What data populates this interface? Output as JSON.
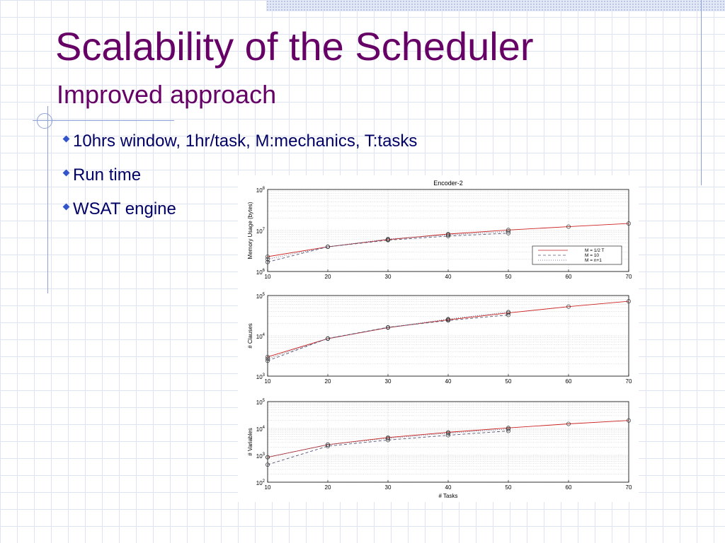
{
  "slide": {
    "title": "Scalability of the Scheduler",
    "subtitle": "Improved approach",
    "bullets": [
      {
        "text": "10hrs window, 1hr/task, M:mechanics, T:tasks"
      },
      {
        "text": "Run time"
      },
      {
        "text": "WSAT engine"
      }
    ]
  },
  "colors": {
    "title": "#660066",
    "bullet_text": "#000066",
    "bullet_marker": "#3355cc",
    "series_red": "#cc2222",
    "series_dash": "#555577"
  },
  "chart_data": [
    {
      "type": "line",
      "title": "Encoder-2",
      "xlabel": "",
      "ylabel": "Memory Usage (bytes)",
      "yscale": "log",
      "xlim": [
        10,
        70
      ],
      "ylim": [
        1000000,
        100000000
      ],
      "x_ticks": [
        10,
        20,
        30,
        40,
        50,
        60,
        70
      ],
      "y_ticks": [
        {
          "base": "10",
          "exp": "6",
          "value": 1000000
        },
        {
          "base": "10",
          "exp": "7",
          "value": 10000000
        },
        {
          "base": "10",
          "exp": "8",
          "value": 100000000
        }
      ],
      "legend": {
        "position": "bottom-right",
        "entries": [
          "M = 1/2 T",
          "M = 10",
          "M = n+1"
        ]
      },
      "series": [
        {
          "name": "M = 1/2 T",
          "style": "solid",
          "x": [
            10,
            20,
            30,
            40,
            50,
            60,
            70
          ],
          "y": [
            2300000,
            4000000,
            6000000,
            8200000,
            10300000,
            12400000,
            14800000
          ]
        },
        {
          "name": "M = 10",
          "style": "dashed",
          "x": [
            10,
            20,
            30,
            40,
            50
          ],
          "y": [
            1700000,
            4000000,
            5800000,
            7300000,
            8600000
          ]
        },
        {
          "name": "M = n+1",
          "style": "dotted",
          "x": [
            10,
            20,
            30,
            40,
            50
          ],
          "y": [
            2000000,
            4000000,
            6200000,
            7800000,
            9500000
          ]
        }
      ],
      "grid": true
    },
    {
      "type": "line",
      "title": "",
      "xlabel": "",
      "ylabel": "# Clauses",
      "yscale": "log",
      "xlim": [
        10,
        70
      ],
      "ylim": [
        1000,
        100000
      ],
      "x_ticks": [
        10,
        20,
        30,
        40,
        50,
        60,
        70
      ],
      "y_ticks": [
        {
          "base": "10",
          "exp": "3",
          "value": 1000
        },
        {
          "base": "10",
          "exp": "4",
          "value": 10000
        },
        {
          "base": "10",
          "exp": "5",
          "value": 100000
        }
      ],
      "series": [
        {
          "name": "M = 1/2 T",
          "style": "solid",
          "x": [
            10,
            20,
            30,
            40,
            50,
            60,
            70
          ],
          "y": [
            3000,
            8500,
            16000,
            25000,
            37000,
            53000,
            72000
          ]
        },
        {
          "name": "M = 10",
          "style": "dashed",
          "x": [
            10,
            20,
            30,
            40,
            50
          ],
          "y": [
            2400,
            8600,
            16300,
            24000,
            33000
          ]
        },
        {
          "name": "M = n+1",
          "style": "dotted",
          "x": [
            10,
            20,
            30,
            40,
            50
          ],
          "y": [
            2700,
            8500,
            16200,
            26000,
            39000
          ]
        }
      ],
      "grid": true
    },
    {
      "type": "line",
      "title": "",
      "xlabel": "# Tasks",
      "ylabel": "# Variables",
      "yscale": "log",
      "xlim": [
        10,
        70
      ],
      "ylim": [
        100,
        100000
      ],
      "x_ticks": [
        10,
        20,
        30,
        40,
        50,
        60,
        70
      ],
      "y_ticks": [
        {
          "base": "10",
          "exp": "2",
          "value": 100
        },
        {
          "base": "10",
          "exp": "3",
          "value": 1000
        },
        {
          "base": "10",
          "exp": "4",
          "value": 10000
        },
        {
          "base": "10",
          "exp": "5",
          "value": 100000
        }
      ],
      "series": [
        {
          "name": "M = 1/2 T",
          "style": "solid",
          "x": [
            10,
            20,
            30,
            40,
            50,
            60,
            70
          ],
          "y": [
            850,
            2500,
            4600,
            7200,
            10500,
            14800,
            19800
          ]
        },
        {
          "name": "M = 10",
          "style": "dashed",
          "x": [
            10,
            20,
            30,
            40,
            50
          ],
          "y": [
            450,
            2200,
            3700,
            5600,
            8100
          ]
        },
        {
          "name": "M = n+1",
          "style": "dotted",
          "x": [
            10,
            20,
            30,
            40,
            50
          ],
          "y": [
            850,
            2500,
            4300,
            6700,
            9600
          ]
        }
      ],
      "grid": true
    }
  ]
}
